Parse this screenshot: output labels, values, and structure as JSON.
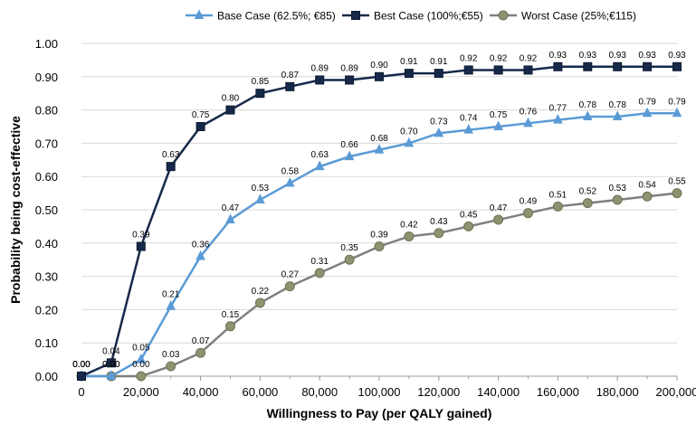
{
  "chart_data": {
    "type": "line",
    "title": "",
    "xlabel": "Willingness to Pay (per QALY gained)",
    "ylabel": "Probability being cost-effective",
    "xlim": [
      0,
      200000
    ],
    "ylim": [
      0,
      1
    ],
    "x_ticks": [
      0,
      20000,
      40000,
      60000,
      80000,
      100000,
      120000,
      140000,
      160000,
      180000,
      200000
    ],
    "x_tick_labels": [
      "0",
      "20,000",
      "40,000",
      "60,000",
      "80,000",
      "100,000",
      "120,000",
      "140,000",
      "160,000",
      "180,000",
      "200,000"
    ],
    "y_ticks": [
      0,
      0.1,
      0.2,
      0.3,
      0.4,
      0.5,
      0.6,
      0.7,
      0.8,
      0.9,
      1.0
    ],
    "y_tick_labels": [
      "0.00",
      "0.10",
      "0.20",
      "0.30",
      "0.40",
      "0.50",
      "0.60",
      "0.70",
      "0.80",
      "0.90",
      "1.00"
    ],
    "grid": true,
    "legend_position": "top",
    "x": [
      0,
      10000,
      20000,
      30000,
      40000,
      50000,
      60000,
      70000,
      80000,
      90000,
      100000,
      110000,
      120000,
      130000,
      140000,
      150000,
      160000,
      170000,
      180000,
      190000,
      200000
    ],
    "series": [
      {
        "name": "Base Case (62.5%; €85)",
        "color": "#5b9bd5",
        "marker": "triangle",
        "values": [
          0.0,
          0.0,
          0.05,
          0.21,
          0.36,
          0.47,
          0.53,
          0.58,
          0.63,
          0.66,
          0.68,
          0.7,
          0.73,
          0.74,
          0.75,
          0.76,
          0.77,
          0.78,
          0.78,
          0.79,
          0.79
        ],
        "labels": [
          "0.00",
          "0.00",
          "0.05",
          "0.21",
          "0.36",
          "0.47",
          "0.53",
          "0.58",
          "0.63",
          "0.66",
          "0.68",
          "0.70",
          "0.73",
          "0.74",
          "0.75",
          "0.76",
          "0.77",
          "0.78",
          "0.78",
          "0.79",
          "0.79"
        ]
      },
      {
        "name": "Best Case (100%;€55)",
        "color": "#17294a",
        "marker": "square",
        "values": [
          0.0,
          0.04,
          0.39,
          0.63,
          0.75,
          0.8,
          0.85,
          0.87,
          0.89,
          0.89,
          0.9,
          0.91,
          0.91,
          0.92,
          0.92,
          0.92,
          0.93,
          0.93,
          0.93,
          0.93,
          0.93
        ],
        "labels": [
          "0.00",
          "0.04",
          "0.39",
          "0.63",
          "0.75",
          "0.80",
          "0.85",
          "0.87",
          "0.89",
          "0.89",
          "0.90",
          "0.91",
          "0.91",
          "0.92",
          "0.92",
          "0.92",
          "0.93",
          "0.93",
          "0.93",
          "0.93",
          "0.93"
        ]
      },
      {
        "name": "Worst Case (25%;€115)",
        "color": "#8c9370",
        "line_color": "#7f7f7f",
        "marker": "circle",
        "values": [
          0.0,
          0.0,
          0.0,
          0.03,
          0.07,
          0.15,
          0.22,
          0.27,
          0.31,
          0.35,
          0.39,
          0.42,
          0.43,
          0.45,
          0.47,
          0.49,
          0.51,
          0.52,
          0.53,
          0.54,
          0.55
        ],
        "labels": [
          "0.00",
          "0.00",
          "0.00",
          "0.03",
          "0.07",
          "0.15",
          "0.22",
          "0.27",
          "0.31",
          "0.35",
          "0.39",
          "0.42",
          "0.43",
          "0.45",
          "0.47",
          "0.49",
          "0.51",
          "0.52",
          "0.53",
          "0.54",
          "0.55"
        ]
      }
    ]
  }
}
